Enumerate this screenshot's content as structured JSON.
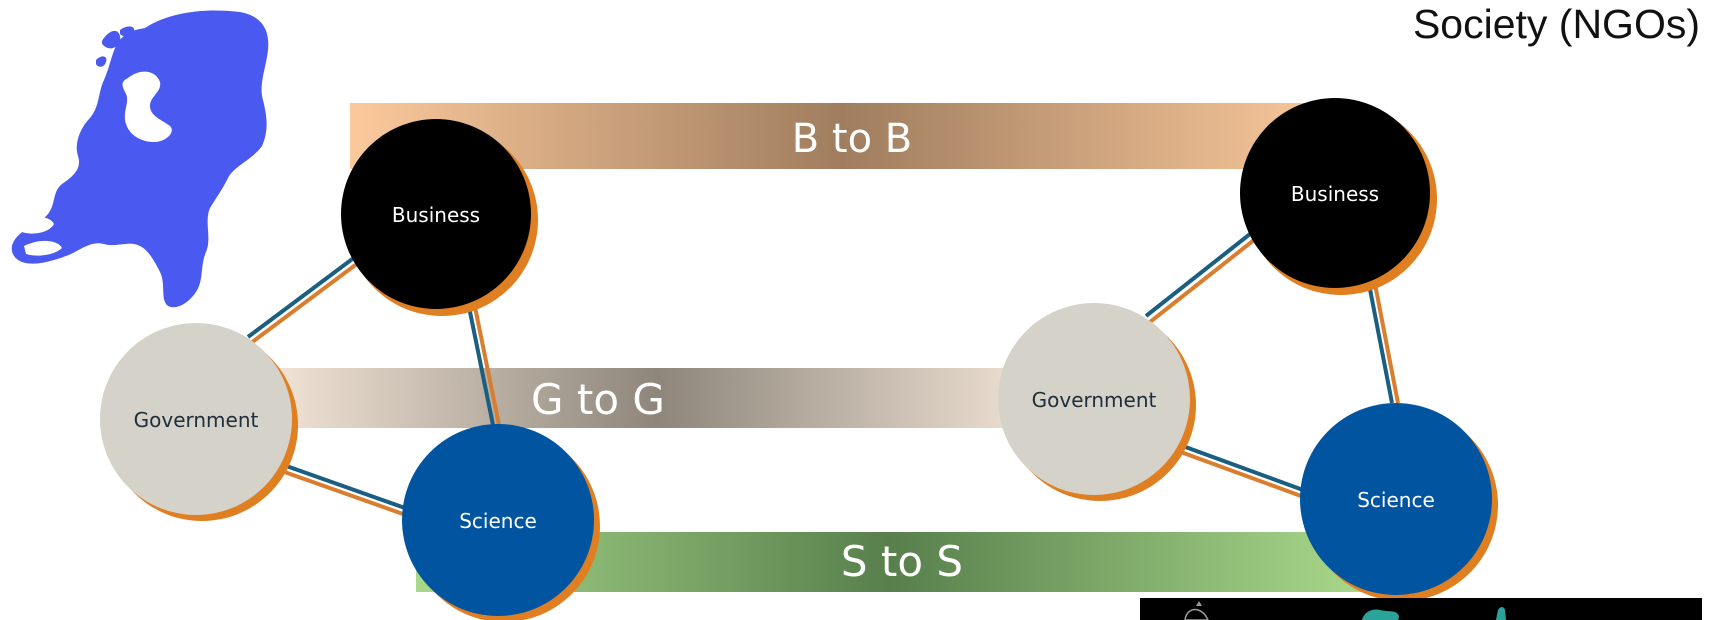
{
  "corner_label": "Society (NGOs)",
  "bands": {
    "b2b": {
      "label": "B to B",
      "edge_color": "#fbc99c",
      "mid_color": "#9f7d5e"
    },
    "g2g": {
      "label": "G to G",
      "edge_color": "#f0e3d5",
      "mid_color": "#8e867b"
    },
    "s2s": {
      "label": "S to S",
      "edge_color": "#a8d88a",
      "mid_color": "#587f4c"
    }
  },
  "clusters": {
    "left": {
      "business": "Business",
      "government": "Government",
      "science": "Science"
    },
    "right": {
      "business": "Business",
      "government": "Government",
      "science": "Science"
    }
  },
  "colors": {
    "business": "#000000",
    "government": "#d5d2c9",
    "science": "#0054a0",
    "shadow": "#e07e22",
    "link_dark": "#1a5e82",
    "link_orange": "#d97d2e",
    "map": "#4a5af0",
    "node_text_light": "#ffffff",
    "node_text_dark": "#1e2e3c"
  },
  "icons": {
    "map": "netherlands-map-icon",
    "logos": "partner-logos-strip"
  }
}
